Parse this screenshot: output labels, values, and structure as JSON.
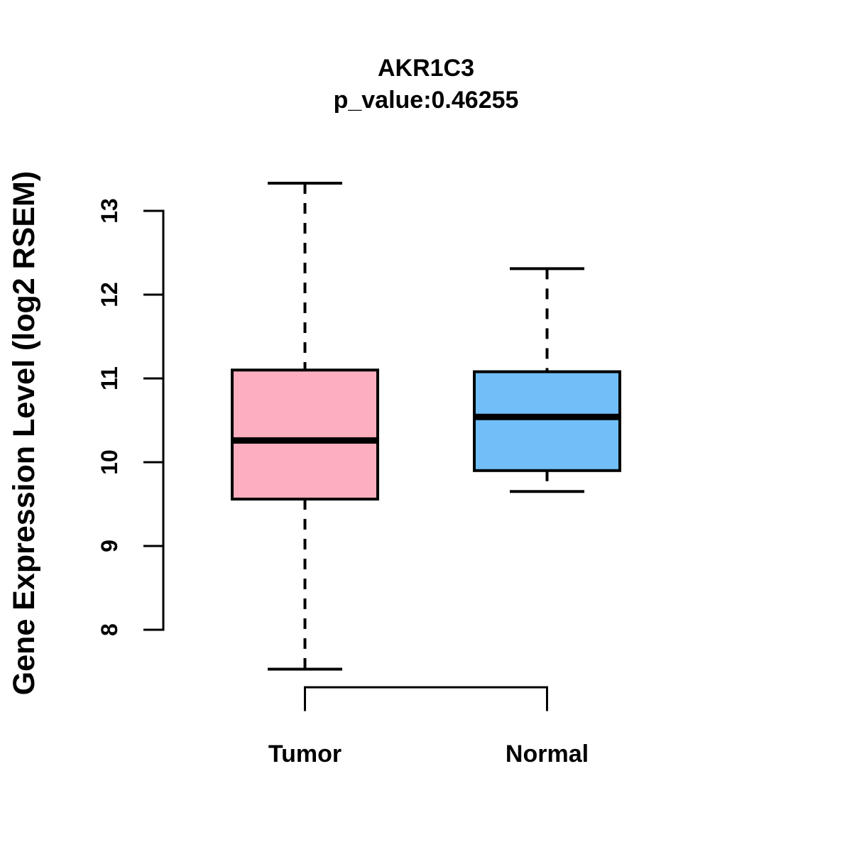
{
  "title": "AKR1C3",
  "subtitle": "p_value:0.46255",
  "y_axis": {
    "label": "Gene Expression Level (log2 RSEM)",
    "ticks": [
      8,
      9,
      10,
      11,
      12,
      13
    ]
  },
  "x_axis": {
    "categories": [
      "Tumor",
      "Normal"
    ]
  },
  "colors": {
    "tumor_fill": "#FDAFC0",
    "normal_fill": "#71BEF8",
    "line": "#000000",
    "background": "#FFFFFF"
  },
  "chart_data": {
    "type": "boxplot",
    "title": "AKR1C3",
    "subtitle": "p_value:0.46255",
    "ylabel": "Gene Expression Level (log2 RSEM)",
    "ylim": [
      8,
      13
    ],
    "grid": false,
    "legend": false,
    "categories": [
      "Tumor",
      "Normal"
    ],
    "series": [
      {
        "name": "Tumor",
        "color": "#FDAFC0",
        "whisker_low": 7.53,
        "q1": 9.56,
        "median": 10.26,
        "q3": 11.1,
        "whisker_high": 13.33
      },
      {
        "name": "Normal",
        "color": "#71BEF8",
        "whisker_low": 9.65,
        "q1": 9.9,
        "median": 10.54,
        "q3": 11.08,
        "whisker_high": 12.31
      }
    ]
  }
}
